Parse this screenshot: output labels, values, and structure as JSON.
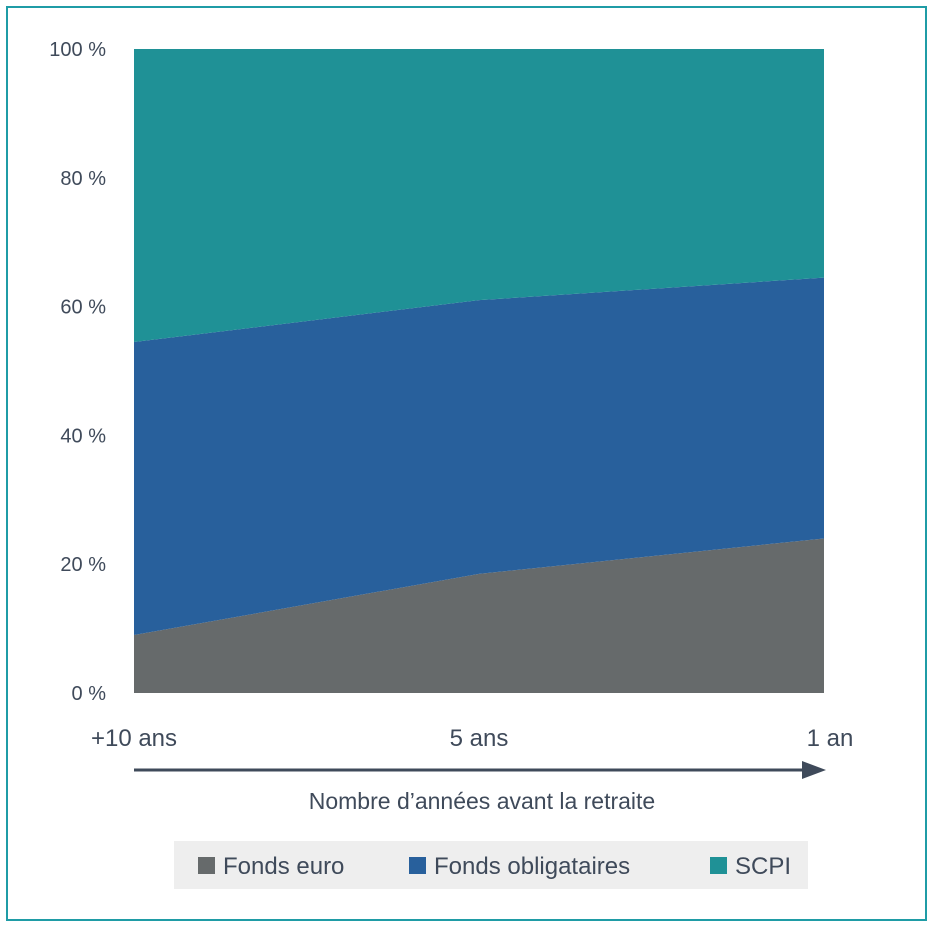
{
  "chart_data": {
    "type": "area",
    "stacked": true,
    "x_categories": [
      "+10 ans",
      "5 ans",
      "1 an"
    ],
    "xlabel": "Nombre d’années avant la retraite",
    "ylabel": "",
    "yticks": [
      "0 %",
      "20 %",
      "40 %",
      "60 %",
      "80 %",
      "100 %"
    ],
    "ylim": [
      0,
      100
    ],
    "grid": false,
    "legend_position": "bottom",
    "series": [
      {
        "name": "Fonds euro",
        "color": "#666a6b",
        "values": [
          9,
          18.5,
          24
        ]
      },
      {
        "name": "Fonds obligataires",
        "color": "#28609c",
        "values": [
          45.5,
          42.5,
          40.5
        ]
      },
      {
        "name": "SCPI",
        "color": "#1f9196",
        "values": [
          45.5,
          39,
          35.5
        ]
      }
    ]
  },
  "axis_color": "#3f4a5a",
  "legend_bg": "#eeeeee"
}
